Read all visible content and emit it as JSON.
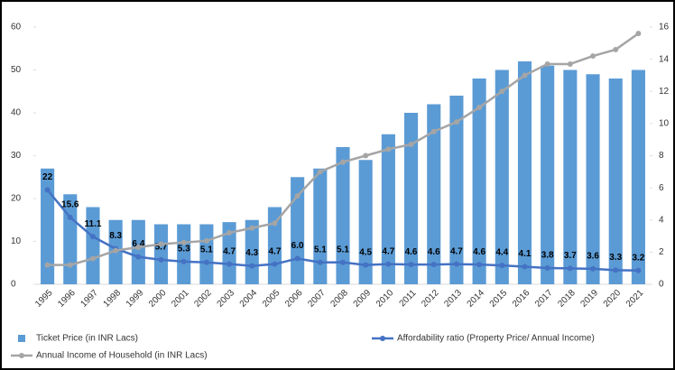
{
  "chart_data": {
    "type": "bar_line",
    "categories": [
      "1995",
      "1996",
      "1997",
      "1998",
      "1999",
      "2000",
      "2001",
      "2002",
      "2003",
      "2004",
      "2005",
      "2006",
      "2007",
      "2008",
      "2009",
      "2010",
      "2011",
      "2012",
      "2013",
      "2014",
      "2015",
      "2016",
      "2017",
      "2018",
      "2019",
      "2020",
      "2021"
    ],
    "series": [
      {
        "name": "Ticket Price (in INR Lacs)",
        "type": "bar",
        "color": "#5b9bd5",
        "values": [
          27,
          21,
          18,
          15,
          15,
          14,
          14,
          14,
          14.5,
          15,
          18,
          25,
          27,
          32,
          29,
          35,
          40,
          42,
          44,
          48,
          50,
          52,
          51,
          50,
          49,
          48,
          50
        ]
      },
      {
        "name": "Affordability ratio (Property Price/ Annual Income)",
        "type": "line",
        "color": "#4472c4",
        "values": [
          22,
          15.6,
          11.1,
          8.3,
          6.4,
          5.7,
          5.3,
          5.1,
          4.7,
          4.3,
          4.7,
          6.0,
          5.1,
          5.1,
          4.5,
          4.7,
          4.6,
          4.6,
          4.7,
          4.6,
          4.4,
          4.1,
          3.8,
          3.7,
          3.6,
          3.3,
          3.2
        ],
        "value_labels": [
          "22",
          "15.6",
          "11.1",
          "8.3",
          "6.4",
          "5.7",
          "5.3",
          "5.1",
          "4.7",
          "4.3",
          "4.7",
          "6.0",
          "5.1",
          "5.1",
          "4.5",
          "4.7",
          "4.6",
          "4.6",
          "4.7",
          "4.6",
          "4.4",
          "4.1",
          "3.8",
          "3.7",
          "3.6",
          "3.3",
          "3.2"
        ]
      },
      {
        "name": "Annual Income of Household (in INR Lacs)",
        "type": "line",
        "axis": "y2",
        "color": "#a5a5a5",
        "values": [
          1.2,
          1.2,
          1.6,
          2.1,
          2.3,
          2.5,
          2.6,
          2.7,
          3.2,
          3.5,
          3.8,
          5.5,
          7.0,
          7.6,
          8.0,
          8.4,
          8.7,
          9.5,
          10.1,
          11.0,
          12.0,
          13.0,
          13.7,
          13.7,
          14.2,
          14.6,
          15.6
        ]
      }
    ],
    "ylim": [
      0,
      60
    ],
    "yticks": [
      0,
      10,
      20,
      30,
      40,
      50,
      60
    ],
    "y2lim": [
      0,
      16
    ],
    "y2ticks": [
      0,
      2,
      4,
      6,
      8,
      10,
      12,
      14,
      16
    ]
  }
}
